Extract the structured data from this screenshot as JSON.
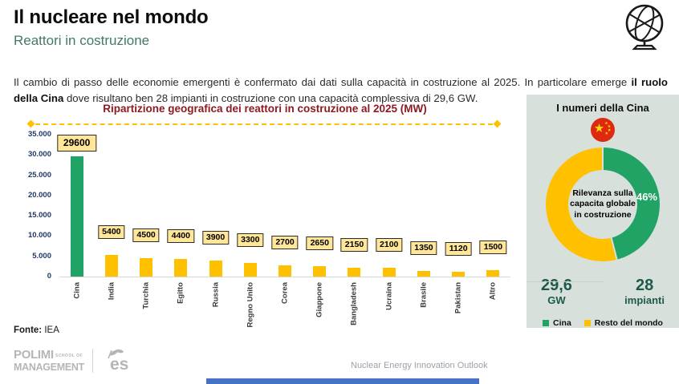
{
  "header": {
    "title": "Il nucleare nel mondo",
    "subtitle": "Reattori in costruzione"
  },
  "intro": {
    "text_before": "Il cambio di passo delle economie emergenti è confermato dai dati sulla capacità in costruzione al 2025. In particolare emerge ",
    "text_bold": "il ruolo della Cina",
    "text_after": " dove risultano ben 28 impianti in costruzione con una capacità complessiva di 29,6 GW."
  },
  "chart_data": [
    {
      "type": "bar",
      "title": "Ripartizione geografica dei reattori in costruzione al 2025 (MW)",
      "categories": [
        "Cina",
        "India",
        "Turchia",
        "Egitto",
        "Russia",
        "Regno Unito",
        "Corea",
        "Giappone",
        "Bangladesh",
        "Ucraina",
        "Brasile",
        "Pakistan",
        "Altro"
      ],
      "values": [
        29600,
        5400,
        4500,
        4400,
        3900,
        3300,
        2700,
        2650,
        2150,
        2100,
        1350,
        1120,
        1500
      ],
      "ylim": [
        0,
        35000
      ],
      "ytick_labels": [
        "35.000",
        "30.000",
        "25.000",
        "20.000",
        "15.000",
        "10.000",
        "5.000",
        "0"
      ],
      "highlight_index": 0,
      "colors": {
        "highlight": "#21A366",
        "default": "#FFC000",
        "label_bg": "#FFE699"
      },
      "legend_position": "none",
      "grid": false
    },
    {
      "type": "pie",
      "title": "I numeri della Cina",
      "labels": [
        "Cina",
        "Resto del mondo"
      ],
      "values": [
        46,
        54
      ],
      "colors": [
        "#21A366",
        "#FFC000"
      ],
      "center_label": "Rilevanza sulla capacita globale in costruzione",
      "data_label": "46%",
      "legend_position": "bottom"
    }
  ],
  "side_panel": {
    "stats": [
      {
        "value": "29,6",
        "unit": "GW"
      },
      {
        "value": "28",
        "unit": "impianti"
      }
    ],
    "legend": [
      {
        "label": "Cina",
        "color": "#21A366"
      },
      {
        "label": "Resto del mondo",
        "color": "#FFC000"
      }
    ]
  },
  "footer": {
    "source_label": "Fonte:",
    "source_value": "IEA",
    "logo_line1": "POLIMI",
    "logo_line1_small": "SCHOOL OF",
    "logo_line2": "MANAGEMENT",
    "logo_es": "es",
    "center_text": "Nuclear Energy Innovation Outlook"
  }
}
